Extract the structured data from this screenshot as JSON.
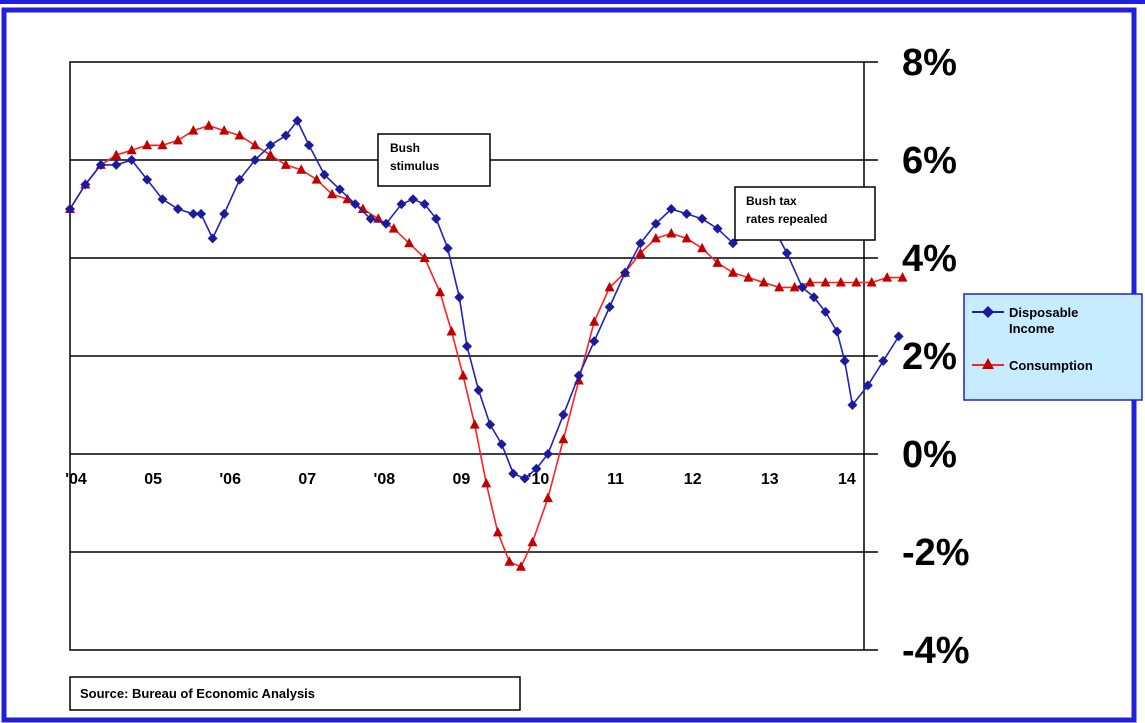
{
  "chart_data": {
    "type": "line",
    "x_tick_labels": [
      "'04",
      "05",
      "'06",
      "07",
      "'08",
      "09",
      "'10",
      "11",
      "12",
      "13",
      "14"
    ],
    "y_tick_labels": [
      "8%",
      "6%",
      "4%",
      "2%",
      "0%",
      "-2%",
      "-4%"
    ],
    "ylim": [
      -4,
      8
    ],
    "xlim": [
      2004.0,
      2014.3
    ],
    "grid": true,
    "legend_position": "right",
    "series": [
      {
        "name": "Disposable Income",
        "color": "#2222bb",
        "marker": "diamond",
        "points": [
          [
            2004.0,
            5.0
          ],
          [
            2004.2,
            5.5
          ],
          [
            2004.4,
            5.9
          ],
          [
            2004.6,
            5.9
          ],
          [
            2004.8,
            6.0
          ],
          [
            2005.0,
            5.6
          ],
          [
            2005.2,
            5.2
          ],
          [
            2005.4,
            5.0
          ],
          [
            2005.6,
            4.9
          ],
          [
            2005.7,
            4.9
          ],
          [
            2005.85,
            4.4
          ],
          [
            2006.0,
            4.9
          ],
          [
            2006.2,
            5.6
          ],
          [
            2006.4,
            6.0
          ],
          [
            2006.6,
            6.3
          ],
          [
            2006.8,
            6.5
          ],
          [
            2006.95,
            6.8
          ],
          [
            2007.1,
            6.3
          ],
          [
            2007.3,
            5.7
          ],
          [
            2007.5,
            5.4
          ],
          [
            2007.7,
            5.1
          ],
          [
            2007.9,
            4.8
          ],
          [
            2008.1,
            4.7
          ],
          [
            2008.3,
            5.1
          ],
          [
            2008.45,
            5.2
          ],
          [
            2008.6,
            5.1
          ],
          [
            2008.75,
            4.8
          ],
          [
            2008.9,
            4.2
          ],
          [
            2009.05,
            3.2
          ],
          [
            2009.15,
            2.2
          ],
          [
            2009.3,
            1.3
          ],
          [
            2009.45,
            0.6
          ],
          [
            2009.6,
            0.2
          ],
          [
            2009.75,
            -0.4
          ],
          [
            2009.9,
            -0.5
          ],
          [
            2010.05,
            -0.3
          ],
          [
            2010.2,
            0.0
          ],
          [
            2010.4,
            0.8
          ],
          [
            2010.6,
            1.6
          ],
          [
            2010.8,
            2.3
          ],
          [
            2011.0,
            3.0
          ],
          [
            2011.2,
            3.7
          ],
          [
            2011.4,
            4.3
          ],
          [
            2011.6,
            4.7
          ],
          [
            2011.8,
            5.0
          ],
          [
            2012.0,
            4.9
          ],
          [
            2012.2,
            4.8
          ],
          [
            2012.4,
            4.6
          ],
          [
            2012.6,
            4.3
          ],
          [
            2012.8,
            4.5
          ],
          [
            2012.95,
            5.0
          ],
          [
            2013.1,
            4.7
          ],
          [
            2013.3,
            4.1
          ],
          [
            2013.5,
            3.4
          ],
          [
            2013.65,
            3.2
          ],
          [
            2013.8,
            2.9
          ],
          [
            2013.95,
            2.5
          ],
          [
            2014.05,
            1.9
          ],
          [
            2014.15,
            1.0
          ],
          [
            2014.35,
            1.4
          ],
          [
            2014.55,
            1.9
          ],
          [
            2014.75,
            2.4
          ]
        ]
      },
      {
        "name": "Consumption",
        "color": "#ff2222",
        "marker": "triangle",
        "points": [
          [
            2004.0,
            5.0
          ],
          [
            2004.2,
            5.5
          ],
          [
            2004.4,
            5.9
          ],
          [
            2004.6,
            6.1
          ],
          [
            2004.8,
            6.2
          ],
          [
            2005.0,
            6.3
          ],
          [
            2005.2,
            6.3
          ],
          [
            2005.4,
            6.4
          ],
          [
            2005.6,
            6.6
          ],
          [
            2005.8,
            6.7
          ],
          [
            2006.0,
            6.6
          ],
          [
            2006.2,
            6.5
          ],
          [
            2006.4,
            6.3
          ],
          [
            2006.6,
            6.1
          ],
          [
            2006.8,
            5.9
          ],
          [
            2007.0,
            5.8
          ],
          [
            2007.2,
            5.6
          ],
          [
            2007.4,
            5.3
          ],
          [
            2007.6,
            5.2
          ],
          [
            2007.8,
            5.0
          ],
          [
            2008.0,
            4.8
          ],
          [
            2008.2,
            4.6
          ],
          [
            2008.4,
            4.3
          ],
          [
            2008.6,
            4.0
          ],
          [
            2008.8,
            3.3
          ],
          [
            2008.95,
            2.5
          ],
          [
            2009.1,
            1.6
          ],
          [
            2009.25,
            0.6
          ],
          [
            2009.4,
            -0.6
          ],
          [
            2009.55,
            -1.6
          ],
          [
            2009.7,
            -2.2
          ],
          [
            2009.85,
            -2.3
          ],
          [
            2010.0,
            -1.8
          ],
          [
            2010.2,
            -0.9
          ],
          [
            2010.4,
            0.3
          ],
          [
            2010.6,
            1.5
          ],
          [
            2010.8,
            2.7
          ],
          [
            2011.0,
            3.4
          ],
          [
            2011.2,
            3.7
          ],
          [
            2011.4,
            4.1
          ],
          [
            2011.6,
            4.4
          ],
          [
            2011.8,
            4.5
          ],
          [
            2012.0,
            4.4
          ],
          [
            2012.2,
            4.2
          ],
          [
            2012.4,
            3.9
          ],
          [
            2012.6,
            3.7
          ],
          [
            2012.8,
            3.6
          ],
          [
            2013.0,
            3.5
          ],
          [
            2013.2,
            3.4
          ],
          [
            2013.4,
            3.4
          ],
          [
            2013.6,
            3.5
          ],
          [
            2013.8,
            3.5
          ],
          [
            2014.0,
            3.5
          ],
          [
            2014.2,
            3.5
          ],
          [
            2014.4,
            3.5
          ],
          [
            2014.6,
            3.6
          ],
          [
            2014.8,
            3.6
          ]
        ]
      }
    ],
    "annotations": [
      {
        "text_lines": [
          "Bush",
          "stimulus"
        ]
      },
      {
        "text_lines": [
          "Bush tax",
          "rates repealed"
        ]
      }
    ],
    "legend": {
      "items": [
        {
          "label_lines": [
            "Disposable",
            "Income"
          ]
        },
        {
          "label_lines": [
            "Consumption"
          ]
        }
      ]
    },
    "source": "Source:  Bureau  of Economic Analysis"
  }
}
